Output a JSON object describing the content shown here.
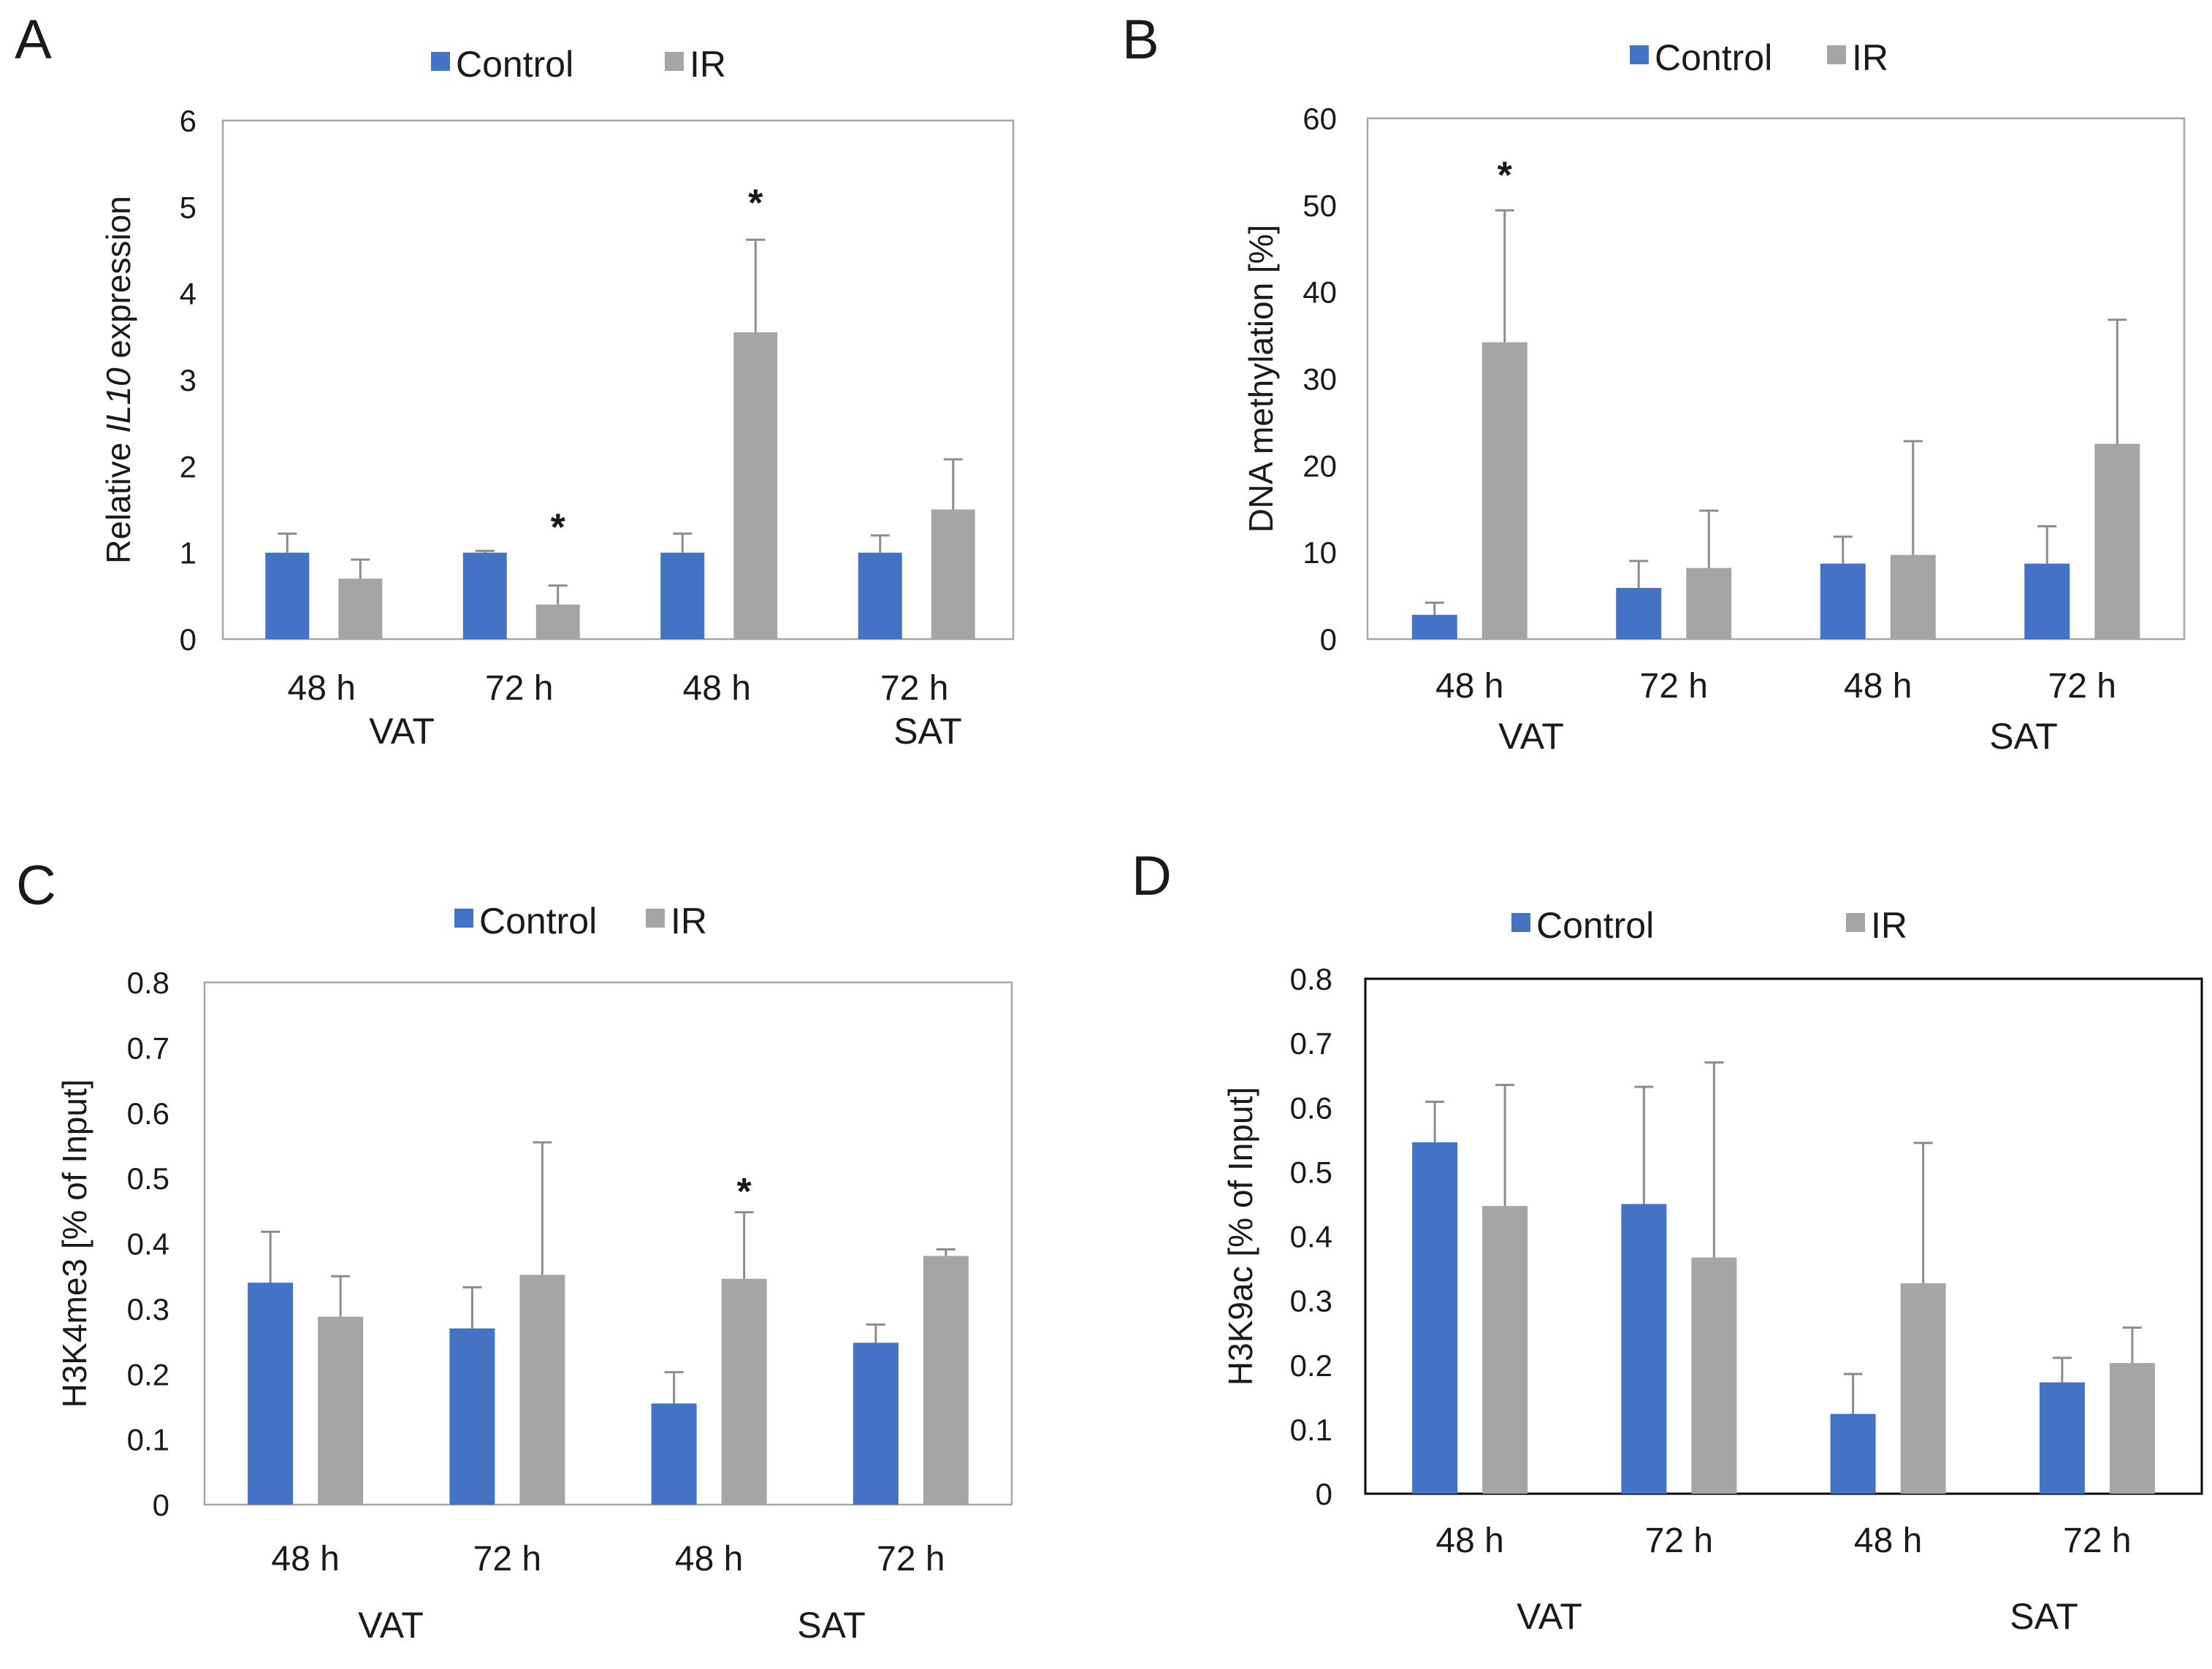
{
  "colors": {
    "control": "#4472C4",
    "ir": "#A5A5A5",
    "errorbar": "#8C8C8C",
    "frame": "#A6A6A6",
    "frame_dark": "#000000"
  },
  "chart_data": [
    {
      "panel": "A",
      "type": "bar",
      "legend": [
        "Control",
        "IR"
      ],
      "ylabel_parts": [
        "Relative ",
        "IL10",
        " expression"
      ],
      "ylim": [
        0,
        6
      ],
      "yticks": [
        "0",
        "1",
        "2",
        "3",
        "4",
        "5",
        "6"
      ],
      "categories": [
        "48 h",
        "72 h",
        "48 h",
        "72 h"
      ],
      "groups": [
        "VAT",
        "SAT"
      ],
      "series": [
        {
          "name": "Control",
          "values": [
            1.0,
            1.0,
            1.0,
            1.0
          ],
          "errors": [
            0.22,
            0.02,
            0.22,
            0.2
          ]
        },
        {
          "name": "IR",
          "values": [
            0.7,
            0.4,
            3.55,
            1.5
          ],
          "errors": [
            0.22,
            0.22,
            1.07,
            0.58
          ]
        }
      ],
      "annotations": [
        {
          "text": "*",
          "category_index": 1,
          "y": 1.45
        },
        {
          "text": "*",
          "category_index": 2,
          "y": 5.2
        }
      ]
    },
    {
      "panel": "B",
      "type": "bar",
      "legend": [
        "Control",
        "IR"
      ],
      "ylabel": "DNA methylation [%]",
      "ylim": [
        0,
        60
      ],
      "yticks": [
        "0",
        "10",
        "20",
        "30",
        "40",
        "50",
        "60"
      ],
      "categories": [
        "48 h",
        "72 h",
        "48 h",
        "72 h"
      ],
      "groups": [
        "VAT",
        "SAT"
      ],
      "series": [
        {
          "name": "Control",
          "values": [
            2.8,
            5.9,
            8.7,
            8.7
          ],
          "errors": [
            1.4,
            3.1,
            3.1,
            4.3
          ]
        },
        {
          "name": "IR",
          "values": [
            34.2,
            8.2,
            9.7,
            22.5
          ],
          "errors": [
            15.2,
            6.6,
            13.1,
            14.3
          ]
        }
      ],
      "annotations": [
        {
          "text": "*",
          "category_index": 0,
          "y": 55
        }
      ]
    },
    {
      "panel": "C",
      "type": "bar",
      "legend": [
        "Control",
        "IR"
      ],
      "ylabel": "H3K4me3 [% of Input]",
      "ylim": [
        0,
        0.8
      ],
      "yticks": [
        "0",
        "0.1",
        "0.2",
        "0.3",
        "0.4",
        "0.5",
        "0.6",
        "0.7",
        "0.8"
      ],
      "categories": [
        "48 h",
        "72 h",
        "48 h",
        "72 h"
      ],
      "groups": [
        "VAT",
        "SAT"
      ],
      "series": [
        {
          "name": "Control",
          "values": [
            0.34,
            0.27,
            0.155,
            0.248
          ],
          "errors": [
            0.078,
            0.063,
            0.048,
            0.028
          ]
        },
        {
          "name": "IR",
          "values": [
            0.288,
            0.352,
            0.346,
            0.381
          ],
          "errors": [
            0.062,
            0.203,
            0.102,
            0.01
          ]
        }
      ],
      "annotations": [
        {
          "text": "*",
          "category_index": 2,
          "y": 0.5
        }
      ]
    },
    {
      "panel": "D",
      "type": "bar",
      "legend": [
        "Control",
        "IR"
      ],
      "ylabel": "H3K9ac [% of Input]",
      "ylim": [
        0,
        0.8
      ],
      "yticks": [
        "0",
        "0.1",
        "0.2",
        "0.3",
        "0.4",
        "0.5",
        "0.6",
        "0.7",
        "0.8"
      ],
      "categories": [
        "48 h",
        "72 h",
        "48 h",
        "72 h"
      ],
      "groups": [
        "VAT",
        "SAT"
      ],
      "series": [
        {
          "name": "Control",
          "values": [
            0.546,
            0.45,
            0.124,
            0.173
          ],
          "errors": [
            0.063,
            0.182,
            0.062,
            0.038
          ]
        },
        {
          "name": "IR",
          "values": [
            0.447,
            0.367,
            0.327,
            0.203
          ],
          "errors": [
            0.188,
            0.303,
            0.218,
            0.055
          ]
        }
      ],
      "annotations": []
    }
  ]
}
